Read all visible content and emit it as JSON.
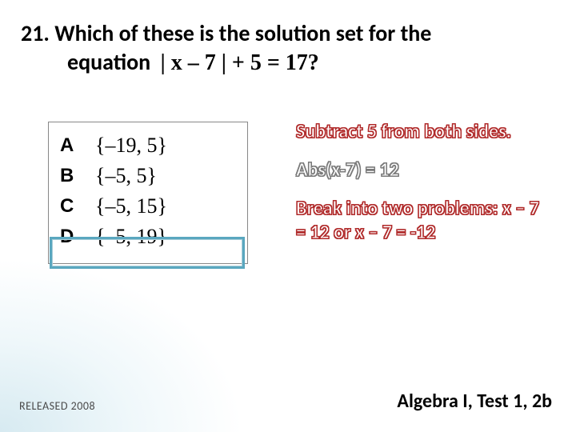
{
  "question": {
    "number": "21.",
    "text_line1": "Which of these is the solution set for the",
    "text_line2_prefix": "equation",
    "equation": "| x – 7 | + 5 = 17?"
  },
  "answers": [
    {
      "letter": "A",
      "value": "{–19, 5}"
    },
    {
      "letter": "B",
      "value": "{–5, 5}"
    },
    {
      "letter": "C",
      "value": "{–5, 15}"
    },
    {
      "letter": "D",
      "value": "{–5, 19}"
    }
  ],
  "highlight_index": 3,
  "steps": {
    "s1": "Subtract 5 from both sides.",
    "s2": "Abs(x-7) = 12",
    "s3": "Break into two problems: x – 7 = 12 or x – 7 = -12"
  },
  "footer": {
    "left": "RELEASED 2008",
    "right": "Algebra I, Test 1, 2b"
  },
  "colors": {
    "highlight_border": "#5aa7bf",
    "red_outline": "#b02a2a",
    "gray_outline": "#7a7a7a"
  }
}
